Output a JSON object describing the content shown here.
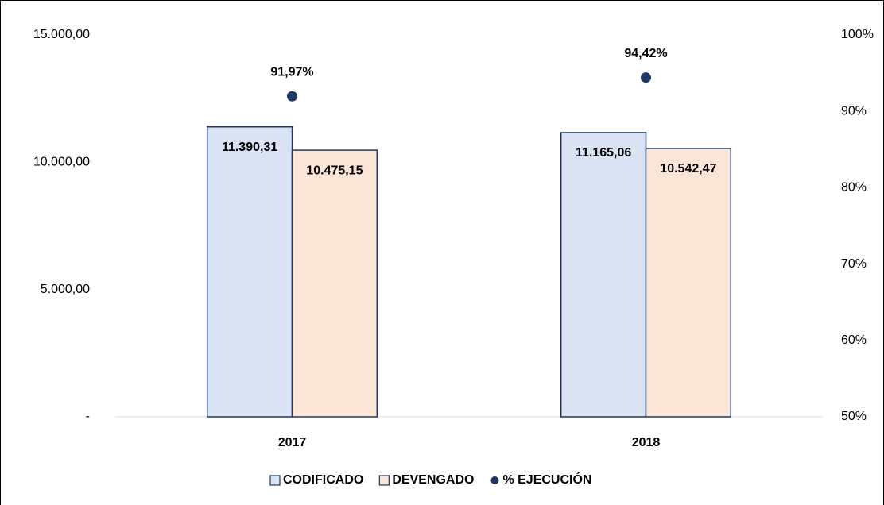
{
  "chart_data": {
    "type": "bar",
    "categories": [
      "2017",
      "2018"
    ],
    "series": [
      {
        "name": "CODIFICADO",
        "color": "#dae3f3",
        "values": [
          11390.31,
          11165.06
        ],
        "value_labels": [
          "11.390,31",
          "11.165,06"
        ]
      },
      {
        "name": "DEVENGADO",
        "color": "#fbe5d6",
        "values": [
          10475.15,
          10542.47
        ],
        "value_labels": [
          "10.475,15",
          "10.542,47"
        ]
      },
      {
        "name": "% EJECUCIÓN",
        "type": "scatter",
        "axis": "y2",
        "color": "#1f3864",
        "values": [
          91.97,
          94.42
        ],
        "value_labels": [
          "91,97%",
          "94,42%"
        ]
      }
    ],
    "ylim": [
      0,
      15000
    ],
    "yticks": [
      {
        "value": 0,
        "label": "-"
      },
      {
        "value": 5000,
        "label": "5.000,00"
      },
      {
        "value": 10000,
        "label": "10.000,00"
      },
      {
        "value": 15000,
        "label": "15.000,00"
      }
    ],
    "y2lim": [
      50,
      100
    ],
    "y2ticks": [
      {
        "value": 50,
        "label": "50%"
      },
      {
        "value": 60,
        "label": "60%"
      },
      {
        "value": 70,
        "label": "70%"
      },
      {
        "value": 80,
        "label": "80%"
      },
      {
        "value": 90,
        "label": "90%"
      },
      {
        "value": 100,
        "label": "100%"
      }
    ],
    "bar_edge_color": "#1f3864",
    "grid": false,
    "legend": "bottom"
  }
}
